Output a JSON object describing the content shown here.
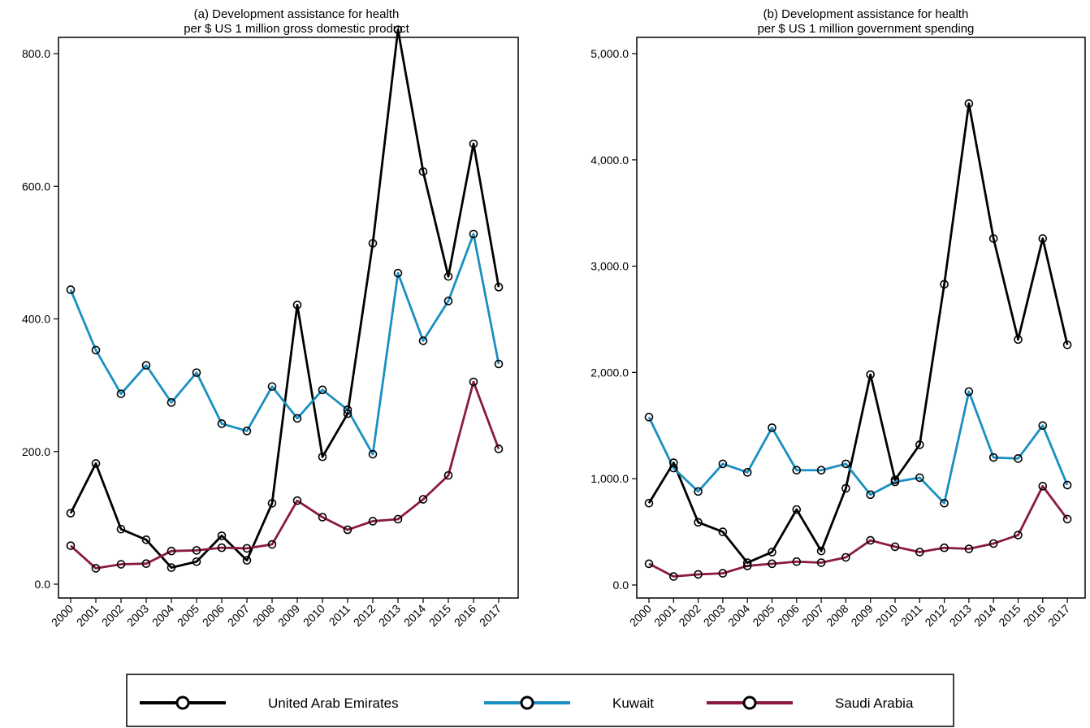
{
  "chart_data": [
    {
      "type": "line",
      "title": "(a) Development assistance for health",
      "subtitle": "per $ US 1 million gross domestic product",
      "xlabel": "",
      "ylabel": "",
      "ylim": [
        0,
        850
      ],
      "yticks": [
        0,
        200,
        400,
        600,
        800
      ],
      "ytick_labels": [
        "0.0",
        "200.0",
        "400.0",
        "600.0",
        "800.0"
      ],
      "grid": false,
      "legend": "bottom",
      "categories": [
        "2000",
        "2001",
        "2002",
        "2003",
        "2004",
        "2005",
        "2006",
        "2007",
        "2008",
        "2009",
        "2010",
        "2011",
        "2012",
        "2013",
        "2014",
        "2015",
        "2016",
        "2017"
      ],
      "series": [
        {
          "name": "United Arab Emirates",
          "color": "#000000",
          "values": [
            107,
            182,
            83,
            67,
            25,
            34,
            73,
            36,
            122,
            421,
            192,
            257,
            514,
            836,
            622,
            464,
            664,
            448
          ]
        },
        {
          "name": "Kuwait",
          "color": "#1a8fc1",
          "values": [
            444,
            353,
            287,
            330,
            274,
            319,
            242,
            231,
            298,
            250,
            293,
            263,
            196,
            469,
            367,
            427,
            528,
            332
          ]
        },
        {
          "name": "Saudi Arabia",
          "color": "#8b1a3d",
          "values": [
            58,
            24,
            30,
            31,
            50,
            51,
            55,
            54,
            60,
            126,
            101,
            82,
            95,
            98,
            128,
            164,
            305,
            204
          ]
        }
      ]
    },
    {
      "type": "line",
      "title": "(b) Development assistance for health",
      "subtitle": "per $ US 1 million government spending",
      "xlabel": "",
      "ylabel": "",
      "ylim": [
        0,
        5150
      ],
      "yticks": [
        0,
        1000,
        2000,
        3000,
        4000,
        5000
      ],
      "ytick_labels": [
        "0.0",
        "1,000.0",
        "2,000.0",
        "3,000.0",
        "4,000.0",
        "5,000.0"
      ],
      "grid": false,
      "legend": "bottom",
      "categories": [
        "2000",
        "2001",
        "2002",
        "2003",
        "2004",
        "2005",
        "2006",
        "2007",
        "2008",
        "2009",
        "2010",
        "2011",
        "2012",
        "2013",
        "2014",
        "2015",
        "2016",
        "2017"
      ],
      "series": [
        {
          "name": "United Arab Emirates",
          "color": "#000000",
          "values": [
            770,
            1150,
            590,
            500,
            210,
            310,
            710,
            320,
            910,
            1980,
            990,
            1320,
            2830,
            4530,
            3260,
            2310,
            3260,
            2260
          ]
        },
        {
          "name": "Kuwait",
          "color": "#1a8fc1",
          "values": [
            1580,
            1100,
            880,
            1140,
            1060,
            1480,
            1080,
            1080,
            1140,
            850,
            970,
            1010,
            770,
            1820,
            1200,
            1190,
            1500,
            940
          ]
        },
        {
          "name": "Saudi Arabia",
          "color": "#8b1a3d",
          "values": [
            200,
            80,
            100,
            110,
            180,
            200,
            220,
            210,
            260,
            420,
            360,
            310,
            350,
            340,
            390,
            470,
            930,
            620
          ]
        }
      ]
    }
  ],
  "legend": {
    "items": [
      {
        "label": "United Arab Emirates",
        "color": "#000000"
      },
      {
        "label": "Kuwait",
        "color": "#1a8fc1"
      },
      {
        "label": "Saudi Arabia",
        "color": "#8b1a3d"
      }
    ]
  }
}
